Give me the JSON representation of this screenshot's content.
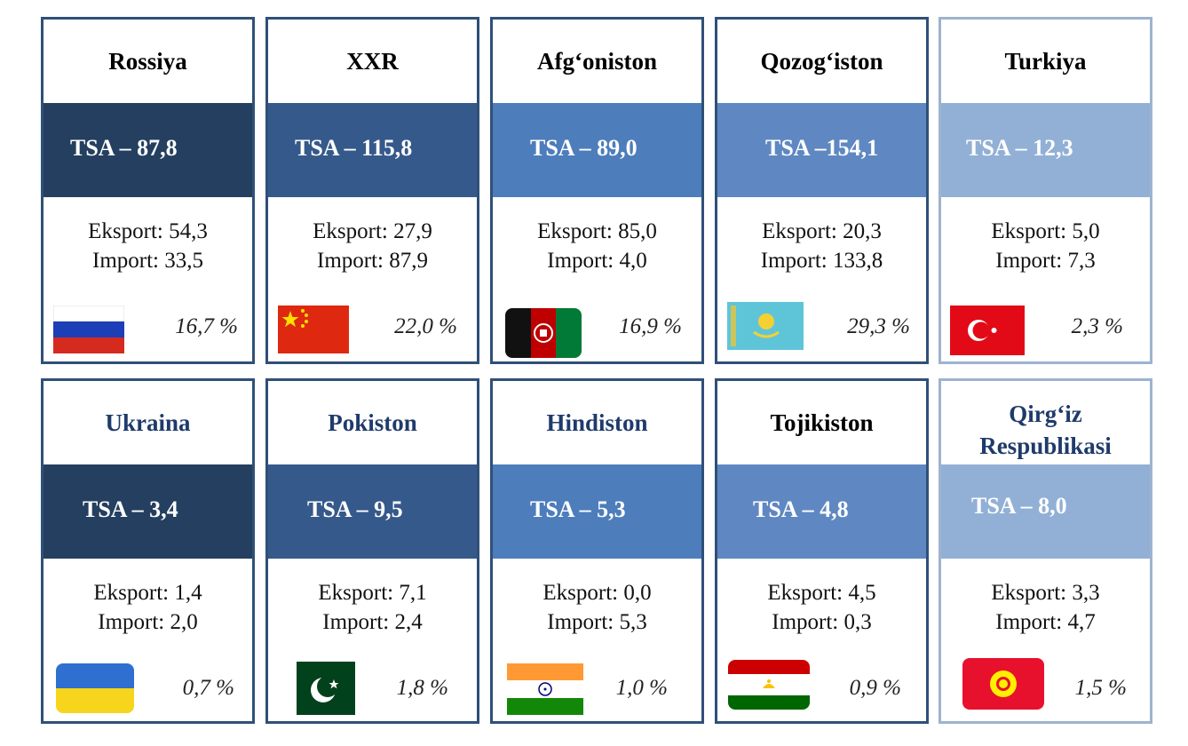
{
  "cards": [
    {
      "name": "Rossiya",
      "tsa": "TSA – 87,8",
      "export": "Eksport: 54,3",
      "import": "Import:  33,5",
      "share": "16,7 %",
      "flag": "russia-flag-icon"
    },
    {
      "name": "XXR",
      "tsa": "TSA – 115,8",
      "export": "Eksport: 27,9",
      "import": "Import:  87,9",
      "share": "22,0 %",
      "flag": "china-flag-icon"
    },
    {
      "name": "Afg‘oniston",
      "tsa": "TSA – 89,0",
      "export": "Eksport: 85,0",
      "import": "Import: 4,0",
      "share": "16,9 %",
      "flag": "afghanistan-flag-icon"
    },
    {
      "name": "Qozog‘iston",
      "tsa": "TSA –154,1",
      "export": "Eksport: 20,3",
      "import": "Import:  133,8",
      "share": "29,3 %",
      "flag": "kazakhstan-flag-icon"
    },
    {
      "name": "Turkiya",
      "tsa": "TSA – 12,3",
      "export": "Eksport: 5,0",
      "import": "Import:  7,3",
      "share": "2,3 %",
      "flag": "turkey-flag-icon"
    },
    {
      "name": "Ukraina",
      "tsa": "TSA – 3,4",
      "export": "Eksport: 1,4",
      "import": "Import: 2,0",
      "share": "0,7 %",
      "flag": "ukraine-flag-icon"
    },
    {
      "name": "Pokiston",
      "tsa": "TSA – 9,5",
      "export": "Eksport: 7,1",
      "import": "Import: 2,4",
      "share": "1,8 %",
      "flag": "pakistan-flag-icon"
    },
    {
      "name": "Hindiston",
      "tsa": "TSA – 5,3",
      "export": "Eksport: 0,0",
      "import": "Import: 5,3",
      "share": "1,0 %",
      "flag": "india-flag-icon"
    },
    {
      "name": "Tojikiston",
      "tsa": "TSA – 4,8",
      "export": "Eksport: 4,5",
      "import": "Import: 0,3",
      "share": "0,9 %",
      "flag": "tajikistan-flag-icon"
    },
    {
      "name": "Qirg‘iz Respublikasi",
      "tsa": "TSA – 8,0",
      "export": "Eksport: 3,3",
      "import": "Import: 4,7",
      "share": "1,5 %",
      "flag": "kyrgyzstan-flag-icon"
    }
  ],
  "colors": {
    "band_1": "#243f60",
    "band_2": "#35598a",
    "band_3": "#4d7dbb",
    "band_4": "#5f88c2",
    "band_5": "#92b0d6",
    "title_dark": "#000000",
    "title_blue": "#1f3b6b",
    "border": "#2f5078"
  }
}
